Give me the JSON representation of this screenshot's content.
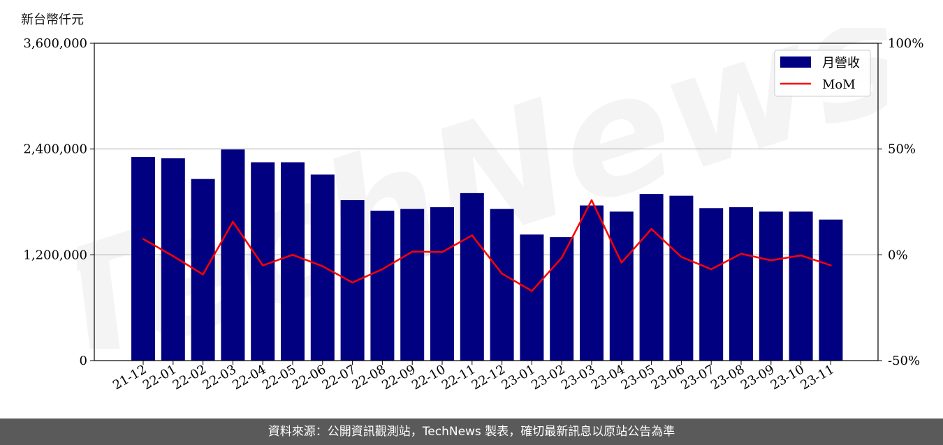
{
  "unit_label": "新台幣仟元",
  "footer_text": "資料來源：公開資訊觀測站，TechNews 製表，確切最新訊息以原站公告為準",
  "watermark_text": "TechNews",
  "colors": {
    "bar": "#000080",
    "line": "#ff0000",
    "footer_bg": "#5a5a5a",
    "grid": "#b0b0b0"
  },
  "chart_data": {
    "type": "bar",
    "categories": [
      "21-12",
      "22-01",
      "22-02",
      "22-03",
      "22-04",
      "22-05",
      "22-06",
      "22-07",
      "22-08",
      "22-09",
      "22-10",
      "22-11",
      "22-12",
      "23-01",
      "23-02",
      "23-03",
      "23-04",
      "23-05",
      "23-06",
      "23-07",
      "23-08",
      "23-09",
      "23-10",
      "23-11"
    ],
    "series": [
      {
        "name": "月營收",
        "type": "bar",
        "axis": "left",
        "values": [
          2310000,
          2295000,
          2060000,
          2395000,
          2250000,
          2250000,
          2110000,
          1820000,
          1700000,
          1720000,
          1740000,
          1900000,
          1720000,
          1430000,
          1400000,
          1760000,
          1690000,
          1890000,
          1870000,
          1730000,
          1740000,
          1690000,
          1690000,
          1600000
        ]
      },
      {
        "name": "MoM",
        "type": "line",
        "axis": "right",
        "values": [
          7.5,
          -0.6,
          -9.3,
          15.6,
          -5.0,
          0.0,
          -5.4,
          -13.1,
          -6.8,
          1.5,
          1.3,
          9.2,
          -8.9,
          -17.1,
          -1.4,
          25.8,
          -3.7,
          12.2,
          -1.0,
          -6.8,
          0.5,
          -2.6,
          -0.3,
          -5.0
        ]
      }
    ],
    "y_left": {
      "ylim": [
        0,
        3600000
      ],
      "ticks": [
        "0",
        "1,200,000",
        "2,400,000",
        "3,600,000"
      ],
      "tick_values": [
        0,
        1200000,
        2400000,
        3600000
      ]
    },
    "y_right": {
      "ylim": [
        -50,
        100
      ],
      "ticks": [
        "-50%",
        "0%",
        "50%",
        "100%"
      ],
      "tick_values": [
        -50,
        0,
        50,
        100
      ]
    },
    "grid": "horizontal",
    "legend_position": "top-right"
  }
}
